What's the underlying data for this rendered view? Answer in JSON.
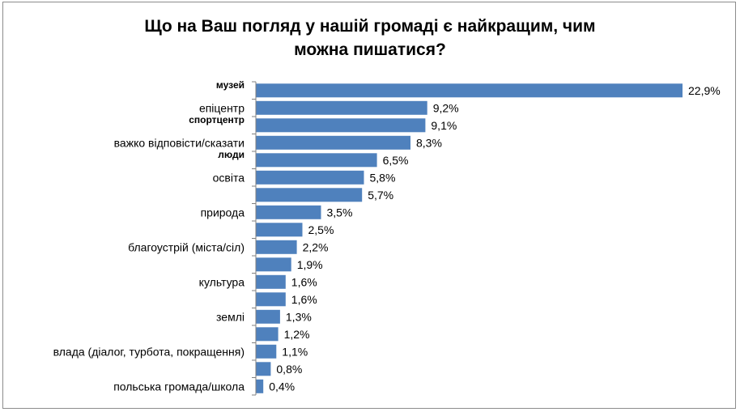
{
  "chart_data": {
    "type": "bar",
    "orientation": "horizontal",
    "title_lines": [
      "Що на Ваш погляд у нашій громаді є найкращим, чим",
      "можна пишатися?"
    ],
    "categories": [
      "музей",
      "епіцентр",
      "спортцентр",
      "важко відповісти/сказати",
      "люди",
      "освіта",
      "",
      "природа",
      "",
      "благоустрій (міста/сіл)",
      "",
      "культура",
      "",
      "землі",
      "",
      "влада (діалог, турбота, покращення)",
      "",
      "польська громада/школа"
    ],
    "bold_categories": [
      "музей",
      "спортцентр",
      "люди"
    ],
    "values": [
      22.9,
      9.2,
      9.1,
      8.3,
      6.5,
      5.8,
      5.7,
      3.5,
      2.5,
      2.2,
      1.9,
      1.6,
      1.6,
      1.3,
      1.2,
      1.1,
      0.8,
      0.4
    ],
    "value_labels": [
      "22,9%",
      "9,2%",
      "9,1%",
      "8,3%",
      "6,5%",
      "5,8%",
      "5,7%",
      "3,5%",
      "2,5%",
      "2,2%",
      "1,9%",
      "1,6%",
      "1,6%",
      "1,3%",
      "1,2%",
      "1,1%",
      "0,8%",
      "0,4%"
    ],
    "xlim": [
      0,
      22.9
    ],
    "grid": false,
    "legend": "none",
    "bar_color": "#4f81bd",
    "axis_color": "#808080"
  }
}
